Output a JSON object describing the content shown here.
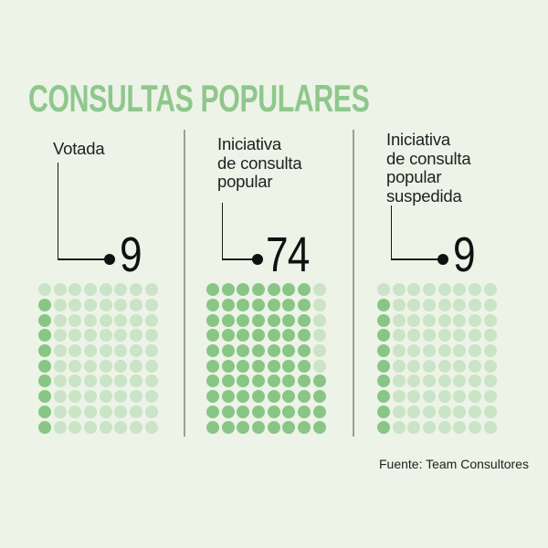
{
  "background_color": "#edf3e7",
  "title": "CONSULTAS POPULARES",
  "title_color": "#8fc78d",
  "footer": "Fuente: Team Consultores",
  "panels": [
    {
      "label_lines": [
        "Votada"
      ],
      "value": "9"
    },
    {
      "label_lines": [
        "Iniciativa",
        "de consulta",
        "popular"
      ],
      "value": "74"
    },
    {
      "label_lines": [
        "Iniciativa",
        "de consulta",
        "popular",
        "suspedida"
      ],
      "value": "9"
    }
  ],
  "chart_data": {
    "type": "waffle",
    "title": "CONSULTAS POPULARES",
    "categories": [
      "Votada",
      "Iniciativa de consulta popular",
      "Iniciativa de consulta popular suspedida"
    ],
    "values": [
      9,
      74,
      9
    ],
    "grid_columns": 8,
    "grid_rows": 10,
    "cells_per_grid": 80,
    "fill_order": "columns left-to-right, each column filled bottom-to-top",
    "filled_color": "#89c686",
    "empty_color": "#cbe3c6",
    "callout_color": "#111111",
    "source": "Fuente: Team Consultores",
    "legend": "none",
    "notes": "Three waffle grids of 8x10 light-green dots; dark dots count equals each category value, annotated by an elbow callout line ending in a bullet and a large number."
  }
}
